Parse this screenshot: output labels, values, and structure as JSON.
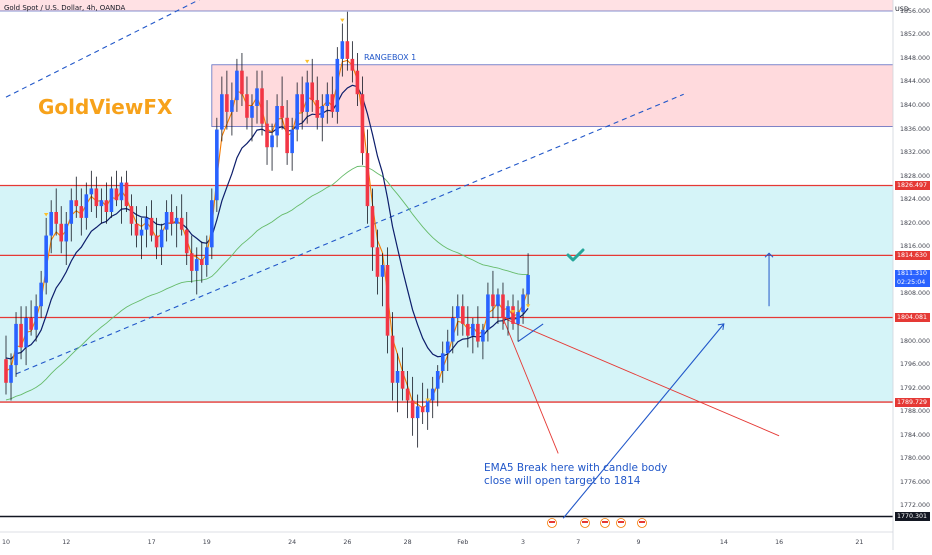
{
  "header": {
    "title": "Gold Spot / U.S. Dollar, 4h, OANDA"
  },
  "brand": {
    "text": "GoldViewFX"
  },
  "annotations": {
    "rangebox": "RANGEBOX 1",
    "note": "EMA5 Break here with candle body close will open target to 1814"
  },
  "colors": {
    "up": "#2962ff",
    "down": "#f23645",
    "wick": "#131722",
    "ema_fast": "#f57c00",
    "ema_slow": "#0d1e6b",
    "ma_long": "#66bb6a",
    "zone": "#b2ebf2",
    "rangebox": "#ffcdd2",
    "level": "#e53935",
    "trend": "#2157c9",
    "check": "#26a69a"
  },
  "price_axis": {
    "currency": "USD",
    "min": 1768,
    "max": 1858,
    "ticks": [
      "1856.000",
      "1852.000",
      "1848.000",
      "1844.000",
      "1840.000",
      "1836.000",
      "1832.000",
      "1828.000",
      "1824.000",
      "1820.000",
      "1816.000",
      "1808.000",
      "1800.000",
      "1796.000",
      "1792.000",
      "1788.000",
      "1784.000",
      "1780.000",
      "1776.000",
      "1772.000"
    ],
    "tags": [
      {
        "value": "1826.497",
        "price": 1826.497,
        "kind": "level"
      },
      {
        "value": "1814.630",
        "price": 1814.63,
        "kind": "level"
      },
      {
        "value": "1811.310",
        "price": 1811.31,
        "kind": "current",
        "countdown": "02:25:04"
      },
      {
        "value": "1804.081",
        "price": 1804.081,
        "kind": "level"
      },
      {
        "value": "1789.729",
        "price": 1789.729,
        "kind": "level"
      },
      {
        "value": "1770.301",
        "price": 1770.301,
        "kind": "dark"
      }
    ]
  },
  "time_axis": {
    "labels": [
      {
        "text": "10",
        "slot": 0
      },
      {
        "text": "12",
        "slot": 12
      },
      {
        "text": "17",
        "slot": 29
      },
      {
        "text": "19",
        "slot": 40
      },
      {
        "text": "24",
        "slot": 57
      },
      {
        "text": "26",
        "slot": 68
      },
      {
        "text": "28",
        "slot": 80
      },
      {
        "text": "Feb",
        "slot": 91
      },
      {
        "text": "3",
        "slot": 103
      },
      {
        "text": "7",
        "slot": 114
      },
      {
        "text": "9",
        "slot": 126
      },
      {
        "text": "14",
        "slot": 143
      },
      {
        "text": "16",
        "slot": 154
      },
      {
        "text": "21",
        "slot": 170
      }
    ]
  },
  "chart_data": {
    "type": "candlestick",
    "title": "Gold Spot / U.S. Dollar, 4h, OANDA",
    "ylabel": "USD",
    "ylim": [
      1768,
      1858
    ],
    "levels": [
      1826.497,
      1814.63,
      1804.081,
      1789.729
    ],
    "zones": [
      {
        "name": "support",
        "from": 1789.729,
        "to": 1826.497
      },
      {
        "name": "RANGEBOX 1",
        "from": 1836.5,
        "to": 1847,
        "slot_from": 41,
        "slot_to": 178
      }
    ],
    "candles": [
      [
        1797,
        1801,
        1791,
        1793
      ],
      [
        1793,
        1798,
        1790,
        1796
      ],
      [
        1796,
        1805,
        1794,
        1803
      ],
      [
        1803,
        1806,
        1797,
        1799
      ],
      [
        1799,
        1806,
        1796,
        1804
      ],
      [
        1804,
        1807,
        1801,
        1802
      ],
      [
        1802,
        1808,
        1800,
        1806
      ],
      [
        1806,
        1812,
        1804,
        1810
      ],
      [
        1810,
        1821,
        1808,
        1818
      ],
      [
        1818,
        1824,
        1815,
        1822
      ],
      [
        1822,
        1826,
        1818,
        1820
      ],
      [
        1820,
        1823,
        1815,
        1817
      ],
      [
        1817,
        1822,
        1813,
        1820
      ],
      [
        1820,
        1826,
        1817,
        1824
      ],
      [
        1824,
        1828,
        1821,
        1823
      ],
      [
        1823,
        1826,
        1818,
        1821
      ],
      [
        1821,
        1827,
        1819,
        1825
      ],
      [
        1825,
        1829,
        1822,
        1826
      ],
      [
        1826,
        1828,
        1821,
        1823
      ],
      [
        1823,
        1826,
        1820,
        1824
      ],
      [
        1824,
        1827,
        1820,
        1822
      ],
      [
        1822,
        1828,
        1821,
        1826
      ],
      [
        1826,
        1829,
        1823,
        1824
      ],
      [
        1824,
        1828,
        1820,
        1827
      ],
      [
        1827,
        1829,
        1822,
        1823
      ],
      [
        1823,
        1825,
        1818,
        1820
      ],
      [
        1820,
        1823,
        1816,
        1818
      ],
      [
        1818,
        1821,
        1814,
        1819
      ],
      [
        1819,
        1823,
        1816,
        1821
      ],
      [
        1821,
        1824,
        1817,
        1818
      ],
      [
        1818,
        1821,
        1814,
        1816
      ],
      [
        1816,
        1820,
        1813,
        1819
      ],
      [
        1819,
        1824,
        1817,
        1822
      ],
      [
        1822,
        1825,
        1818,
        1820
      ],
      [
        1820,
        1823,
        1816,
        1821
      ],
      [
        1821,
        1825,
        1818,
        1819
      ],
      [
        1819,
        1822,
        1813,
        1815
      ],
      [
        1815,
        1818,
        1810,
        1812
      ],
      [
        1812,
        1816,
        1808,
        1814
      ],
      [
        1814,
        1817,
        1810,
        1813
      ],
      [
        1813,
        1818,
        1811,
        1816
      ],
      [
        1816,
        1826,
        1814,
        1824
      ],
      [
        1824,
        1838,
        1822,
        1836
      ],
      [
        1836,
        1845,
        1834,
        1842
      ],
      [
        1842,
        1846,
        1836,
        1839
      ],
      [
        1839,
        1844,
        1835,
        1841
      ],
      [
        1841,
        1848,
        1839,
        1846
      ],
      [
        1846,
        1849,
        1840,
        1842
      ],
      [
        1842,
        1845,
        1836,
        1838
      ],
      [
        1838,
        1842,
        1834,
        1840
      ],
      [
        1840,
        1846,
        1837,
        1843
      ],
      [
        1843,
        1846,
        1835,
        1837
      ],
      [
        1837,
        1841,
        1830,
        1833
      ],
      [
        1833,
        1837,
        1829,
        1835
      ],
      [
        1835,
        1842,
        1833,
        1840
      ],
      [
        1840,
        1845,
        1836,
        1838
      ],
      [
        1838,
        1841,
        1830,
        1832
      ],
      [
        1832,
        1838,
        1829,
        1836
      ],
      [
        1836,
        1844,
        1834,
        1842
      ],
      [
        1842,
        1845,
        1836,
        1839
      ],
      [
        1839,
        1846,
        1837,
        1844
      ],
      [
        1844,
        1848,
        1839,
        1841
      ],
      [
        1841,
        1845,
        1836,
        1838
      ],
      [
        1838,
        1842,
        1834,
        1840
      ],
      [
        1840,
        1844,
        1837,
        1842
      ],
      [
        1842,
        1845,
        1838,
        1839
      ],
      [
        1839,
        1850,
        1837,
        1848
      ],
      [
        1848,
        1854,
        1845,
        1851
      ],
      [
        1851,
        1856,
        1846,
        1848
      ],
      [
        1848,
        1851,
        1844,
        1846
      ],
      [
        1846,
        1849,
        1840,
        1842
      ],
      [
        1842,
        1845,
        1830,
        1832
      ],
      [
        1832,
        1836,
        1820,
        1823
      ],
      [
        1823,
        1826,
        1812,
        1816
      ],
      [
        1816,
        1819,
        1808,
        1811
      ],
      [
        1811,
        1815,
        1806,
        1813
      ],
      [
        1813,
        1816,
        1798,
        1801
      ],
      [
        1801,
        1805,
        1790,
        1793
      ],
      [
        1793,
        1798,
        1788,
        1795
      ],
      [
        1795,
        1799,
        1790,
        1792
      ],
      [
        1792,
        1795,
        1787,
        1790
      ],
      [
        1790,
        1794,
        1784,
        1787
      ],
      [
        1787,
        1791,
        1782,
        1789
      ],
      [
        1789,
        1793,
        1786,
        1788
      ],
      [
        1788,
        1792,
        1785,
        1790
      ],
      [
        1790,
        1794,
        1787,
        1792
      ],
      [
        1792,
        1796,
        1789,
        1795
      ],
      [
        1795,
        1800,
        1793,
        1798
      ],
      [
        1798,
        1802,
        1795,
        1800
      ],
      [
        1800,
        1806,
        1798,
        1804
      ],
      [
        1804,
        1808,
        1801,
        1806
      ],
      [
        1806,
        1808,
        1801,
        1803
      ],
      [
        1803,
        1806,
        1799,
        1801
      ],
      [
        1801,
        1804,
        1798,
        1803
      ],
      [
        1803,
        1806,
        1799,
        1800
      ],
      [
        1800,
        1803,
        1797,
        1802
      ],
      [
        1802,
        1810,
        1800,
        1808
      ],
      [
        1808,
        1812,
        1804,
        1806
      ],
      [
        1806,
        1809,
        1803,
        1808
      ],
      [
        1808,
        1810,
        1802,
        1804
      ],
      [
        1804,
        1807,
        1801,
        1806
      ],
      [
        1806,
        1808,
        1802,
        1803
      ],
      [
        1803,
        1807,
        1800,
        1805
      ],
      [
        1805,
        1809,
        1803,
        1808
      ],
      [
        1808,
        1815,
        1806,
        1811.31
      ]
    ],
    "ema_fast_name": "EMA5",
    "markers": [
      {
        "slot": 8,
        "price": 1821.5
      },
      {
        "slot": 60,
        "price": 1847.5
      },
      {
        "slot": 67,
        "price": 1854.5
      },
      {
        "slot": 84,
        "price": 1790
      },
      {
        "slot": 101,
        "price": 1805
      },
      {
        "slot": 104,
        "price": 1806
      }
    ],
    "trendlines": [
      {
        "from": [
          0,
          1841.5
        ],
        "to": [
          50,
          1863
        ],
        "style": "dashed"
      },
      {
        "from": [
          2,
          1794.5
        ],
        "to": [
          135,
          1842
        ],
        "style": "dashed"
      },
      {
        "from": [
          111,
          1770
        ],
        "to": [
          143,
          1803
        ],
        "style": "solid"
      },
      {
        "from": [
          99,
          1804
        ],
        "to": [
          154,
          1784
        ],
        "style": "solid-red"
      },
      {
        "from": [
          99,
          1804
        ],
        "to": [
          110,
          1781
        ],
        "style": "solid-red"
      },
      {
        "from": [
          102,
          1800
        ],
        "to": [
          107,
          1803
        ],
        "style": "solid"
      }
    ],
    "target_arrow": {
      "slot": 152,
      "from": 1806,
      "to": 1815
    }
  }
}
